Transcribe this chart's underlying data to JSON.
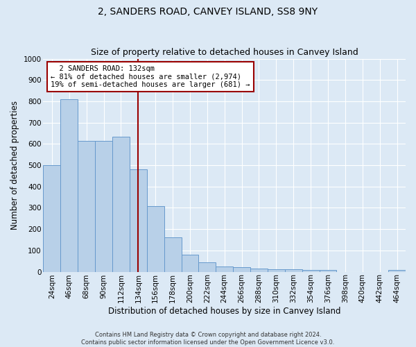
{
  "title": "2, SANDERS ROAD, CANVEY ISLAND, SS8 9NY",
  "subtitle": "Size of property relative to detached houses in Canvey Island",
  "xlabel": "Distribution of detached houses by size in Canvey Island",
  "ylabel": "Number of detached properties",
  "footer_line1": "Contains HM Land Registry data © Crown copyright and database right 2024.",
  "footer_line2": "Contains public sector information licensed under the Open Government Licence v3.0.",
  "annotation_line1": "  2 SANDERS ROAD: 132sqm",
  "annotation_line2": "← 81% of detached houses are smaller (2,974)",
  "annotation_line3": "19% of semi-detached houses are larger (681) →",
  "bar_labels": [
    "24sqm",
    "46sqm",
    "68sqm",
    "90sqm",
    "112sqm",
    "134sqm",
    "156sqm",
    "178sqm",
    "200sqm",
    "222sqm",
    "244sqm",
    "266sqm",
    "288sqm",
    "310sqm",
    "332sqm",
    "354sqm",
    "376sqm",
    "398sqm",
    "420sqm",
    "442sqm",
    "464sqm"
  ],
  "bar_values": [
    500,
    808,
    615,
    615,
    635,
    480,
    308,
    163,
    80,
    44,
    25,
    20,
    15,
    12,
    10,
    8,
    7,
    0,
    0,
    0,
    8
  ],
  "bar_color": "#b8d0e8",
  "bar_edge_color": "#6699cc",
  "vline_x": 5,
  "vline_color": "#990000",
  "ylim": [
    0,
    1000
  ],
  "yticks": [
    0,
    100,
    200,
    300,
    400,
    500,
    600,
    700,
    800,
    900,
    1000
  ],
  "background_color": "#dce9f5",
  "plot_bg_color": "#dce9f5",
  "grid_color": "#ffffff",
  "title_fontsize": 10,
  "subtitle_fontsize": 9,
  "xlabel_fontsize": 8.5,
  "ylabel_fontsize": 8.5,
  "tick_fontsize": 7.5,
  "annotation_fontsize": 7.5
}
